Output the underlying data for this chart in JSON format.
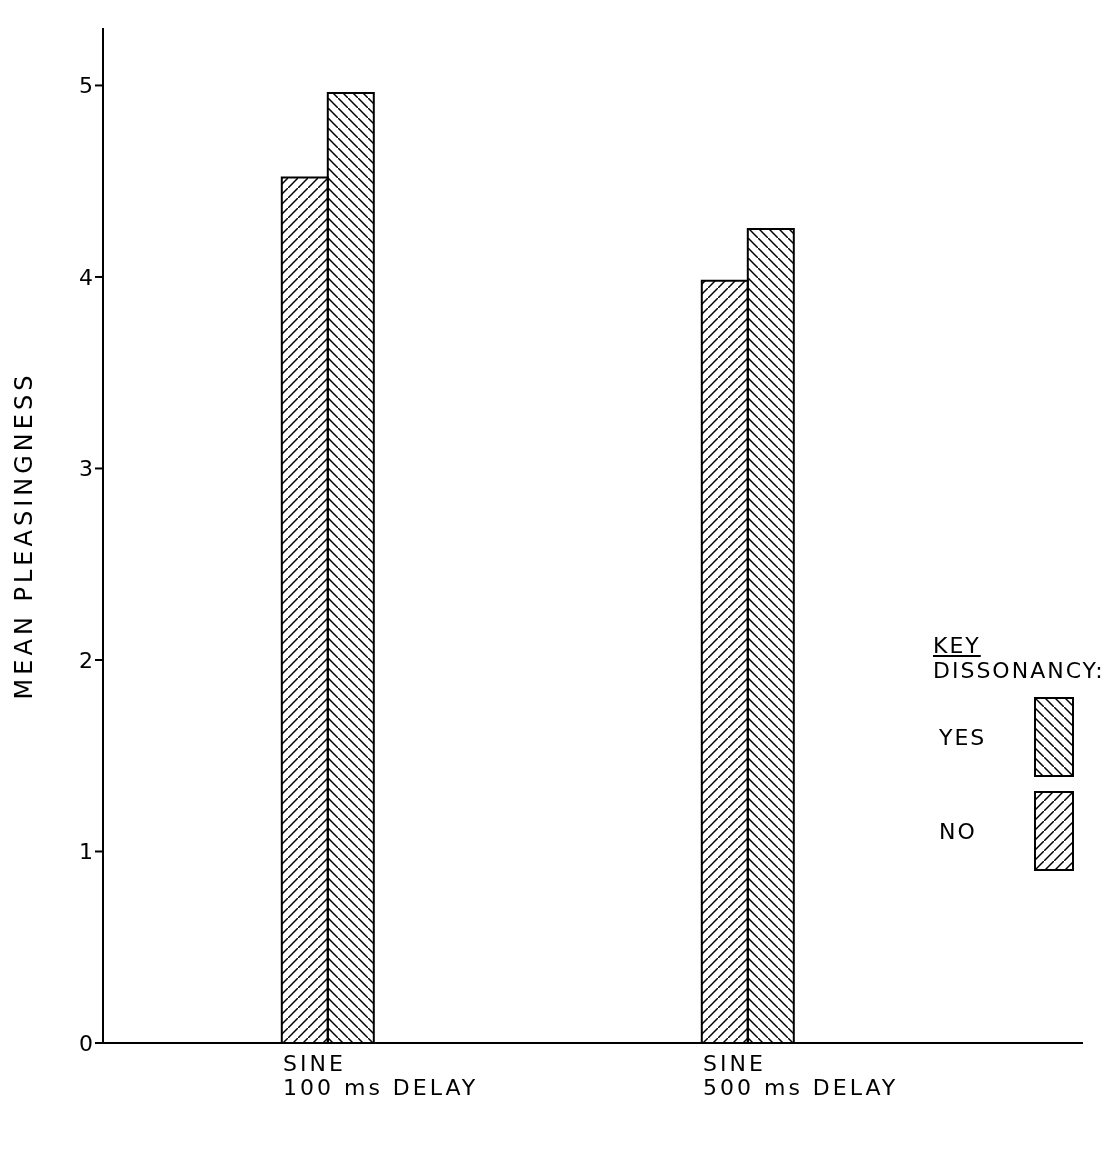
{
  "chart_data": {
    "type": "bar",
    "ylabel": "MEAN PLEASINGNESS",
    "legend_title": "DISSONANCY:",
    "annotations": [
      "KEY"
    ],
    "categories": [
      "SINE\n100 ms DELAY",
      "SINE\n500 ms DELAY"
    ],
    "series": [
      {
        "name": "NO",
        "color": "#000000",
        "values": [
          4.52,
          3.98
        ]
      },
      {
        "name": "YES",
        "color": "#000000",
        "values": [
          4.96,
          4.25
        ]
      }
    ],
    "ylim": [
      0,
      5.3
    ],
    "yticks": [
      0,
      1,
      2,
      3,
      4,
      5
    ],
    "grid": false,
    "legend": "right"
  }
}
